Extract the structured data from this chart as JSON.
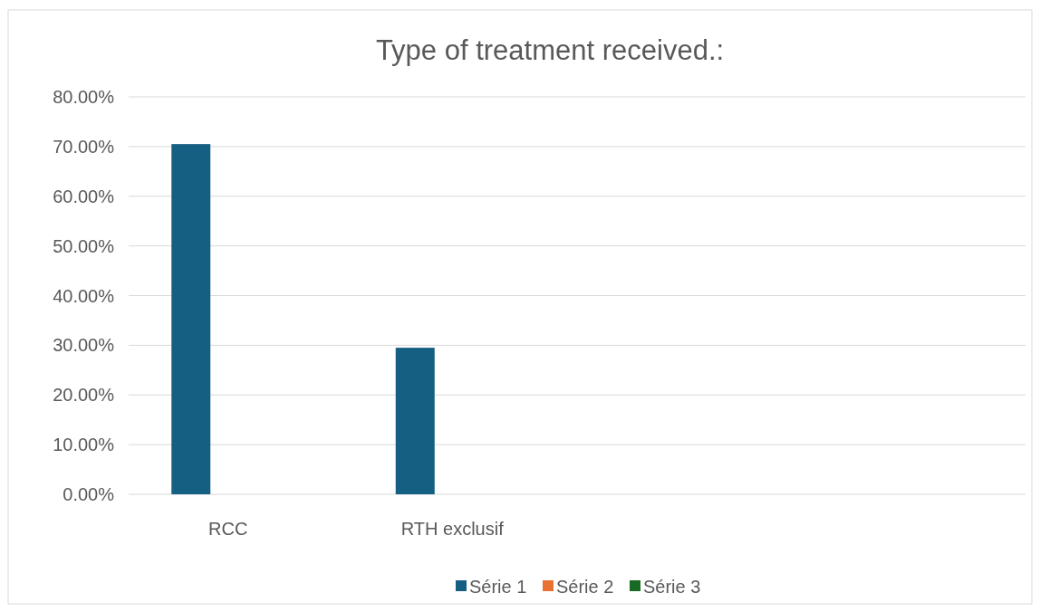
{
  "chart_data": {
    "type": "bar",
    "title": "Type of treatment received.:",
    "categories": [
      "RCC",
      "RTH exclusif",
      null,
      null
    ],
    "series": [
      {
        "name": "Série 1",
        "color": "#156082",
        "values": [
          70.5,
          29.5,
          null,
          null
        ]
      },
      {
        "name": "Série 2",
        "color": "#e97132",
        "values": [
          null,
          null,
          null,
          null
        ]
      },
      {
        "name": "Série 3",
        "color": "#196b24",
        "values": [
          null,
          null,
          null,
          null
        ]
      }
    ],
    "ylim": [
      0,
      80
    ],
    "yticks": [
      {
        "value": 0,
        "label": "0.00%"
      },
      {
        "value": 10,
        "label": "10.00%"
      },
      {
        "value": 20,
        "label": "20.00%"
      },
      {
        "value": 30,
        "label": "30.00%"
      },
      {
        "value": 40,
        "label": "40.00%"
      },
      {
        "value": 50,
        "label": "50.00%"
      },
      {
        "value": 60,
        "label": "60.00%"
      },
      {
        "value": 70,
        "label": "70.00%"
      },
      {
        "value": 80,
        "label": "80.00%"
      }
    ],
    "grid": "y",
    "legend": "bottom"
  }
}
